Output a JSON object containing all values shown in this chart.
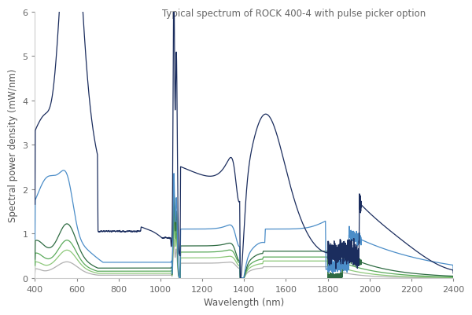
{
  "title": "Typical spectrum of ROCK 400-4 with pulse picker option",
  "xlabel": "Wavelength (nm)",
  "ylabel": "Spectral power density (mW/nm)",
  "xlim": [
    400,
    2400
  ],
  "ylim": [
    0,
    6
  ],
  "yticks": [
    0,
    1,
    2,
    3,
    4,
    5,
    6
  ],
  "xticks": [
    400,
    600,
    800,
    1000,
    1200,
    1400,
    1600,
    1800,
    2000,
    2200,
    2400
  ],
  "background_color": "#ffffff",
  "colors": {
    "dark_navy": "#1b2d5e",
    "medium_blue": "#4b8dc8",
    "dark_green": "#2e6b42",
    "medium_green": "#5aaa5a",
    "light_green": "#8dc87a",
    "gray": "#b0b0b0"
  },
  "title_color": "#666666",
  "axis_color": "#888888",
  "label_color": "#555555"
}
